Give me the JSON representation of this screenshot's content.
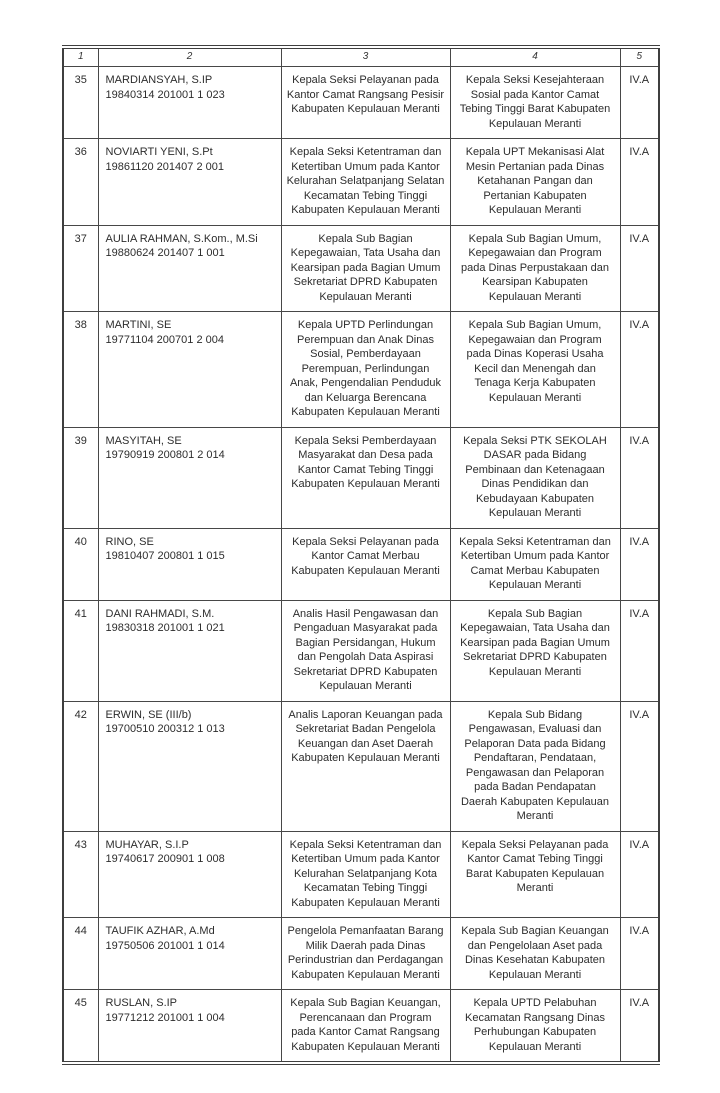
{
  "page": {
    "background": "#ffffff",
    "border_color": "#3f3f3f"
  },
  "table": {
    "headers": [
      "1",
      "2",
      "3",
      "4",
      "5"
    ],
    "rows": [
      {
        "no": "35",
        "name": "MARDIANSYAH, S.IP",
        "nip": "19840314 201001 1 023",
        "old_position": "Kepala Seksi Pelayanan pada Kantor Camat Rangsang Pesisir Kabupaten Kepulauan Meranti",
        "new_position": "Kepala Seksi Kesejahteraan Sosial pada Kantor Camat Tebing Tinggi Barat Kabupaten Kepulauan Meranti",
        "grade": "IV.A"
      },
      {
        "no": "36",
        "name": "NOVIARTI YENI, S.Pt",
        "nip": "19861120 201407 2 001",
        "old_position": "Kepala Seksi Ketentraman dan Ketertiban Umum pada Kantor Kelurahan Selatpanjang Selatan Kecamatan Tebing Tinggi Kabupaten Kepulauan Meranti",
        "new_position": "Kepala UPT Mekanisasi Alat Mesin Pertanian pada Dinas Ketahanan Pangan dan Pertanian Kabupaten Kepulauan Meranti",
        "grade": "IV.A"
      },
      {
        "no": "37",
        "name": "AULIA RAHMAN, S.Kom., M.Si",
        "nip": "19880624 201407 1 001",
        "old_position": "Kepala Sub Bagian Kepegawaian, Tata Usaha dan Kearsipan pada Bagian Umum Sekretariat DPRD Kabupaten Kepulauan Meranti",
        "new_position": "Kepala Sub Bagian Umum, Kepegawaian dan Program pada Dinas Perpustakaan dan Kearsipan Kabupaten Kepulauan Meranti",
        "grade": "IV.A"
      },
      {
        "no": "38",
        "name": "MARTINI, SE",
        "nip": "19771104 200701 2 004",
        "old_position": "Kepala UPTD Perlindungan Perempuan dan Anak Dinas Sosial, Pemberdayaan Perempuan, Perlindungan Anak, Pengendalian Penduduk dan Keluarga Berencana Kabupaten Kepulauan Meranti",
        "new_position": "Kepala Sub Bagian Umum, Kepegawaian dan Program pada Dinas Koperasi Usaha Kecil dan Menengah dan Tenaga Kerja Kabupaten Kepulauan Meranti",
        "grade": "IV.A"
      },
      {
        "no": "39",
        "name": "MASYITAH, SE",
        "nip": "19790919 200801 2 014",
        "old_position": "Kepala Seksi Pemberdayaan Masyarakat dan Desa pada Kantor Camat Tebing Tinggi Kabupaten Kepulauan Meranti",
        "new_position": "Kepala Seksi PTK SEKOLAH DASAR pada Bidang Pembinaan dan Ketenagaan Dinas Pendidikan dan Kebudayaan Kabupaten Kepulauan Meranti",
        "grade": "IV.A"
      },
      {
        "no": "40",
        "name": "RINO, SE",
        "nip": "19810407 200801 1 015",
        "old_position": "Kepala Seksi Pelayanan pada Kantor Camat Merbau Kabupaten Kepulauan Meranti",
        "new_position": "Kepala Seksi Ketentraman dan Ketertiban Umum pada Kantor Camat Merbau Kabupaten Kepulauan Meranti",
        "grade": "IV.A"
      },
      {
        "no": "41",
        "name": "DANI RAHMADI, S.M.",
        "nip": "19830318 201001 1 021",
        "old_position": "Analis Hasil Pengawasan dan Pengaduan Masyarakat pada Bagian Persidangan, Hukum dan Pengolah Data Aspirasi Sekretariat DPRD Kabupaten Kepulauan Meranti",
        "new_position": "Kepala Sub Bagian Kepegawaian, Tata Usaha dan Kearsipan pada Bagian Umum Sekretariat DPRD Kabupaten Kepulauan Meranti",
        "grade": "IV.A"
      },
      {
        "no": "42",
        "name": "ERWIN, SE (III/b)",
        "nip": "19700510 200312 1 013",
        "old_position": "Analis Laporan Keuangan pada Sekretariat Badan Pengelola Keuangan dan Aset Daerah Kabupaten Kepulauan Meranti",
        "new_position": "Kepala Sub Bidang Pengawasan, Evaluasi dan Pelaporan Data pada Bidang Pendaftaran, Pendataan, Pengawasan dan Pelaporan pada Badan Pendapatan Daerah Kabupaten Kepulauan Meranti",
        "grade": "IV.A"
      },
      {
        "no": "43",
        "name": "MUHAYAR, S.I.P",
        "nip": "19740617 200901 1 008",
        "old_position": "Kepala Seksi Ketentraman dan Ketertiban Umum pada Kantor Kelurahan Selatpanjang Kota Kecamatan Tebing Tinggi Kabupaten Kepulauan Meranti",
        "new_position": "Kepala Seksi Pelayanan pada Kantor Camat Tebing Tinggi Barat Kabupaten Kepulauan Meranti",
        "grade": "IV.A"
      },
      {
        "no": "44",
        "name": "TAUFIK AZHAR, A.Md",
        "nip": "19750506 201001 1 014",
        "old_position": "Pengelola Pemanfaatan Barang Milik Daerah pada Dinas Perindustrian dan Perdagangan Kabupaten Kepulauan Meranti",
        "new_position": "Kepala Sub Bagian Keuangan dan Pengelolaan Aset pada Dinas Kesehatan Kabupaten Kepulauan Meranti",
        "grade": "IV.A"
      },
      {
        "no": "45",
        "name": "RUSLAN, S.IP",
        "nip": "19771212 201001 1 004",
        "old_position": "Kepala Sub Bagian Keuangan, Perencanaan dan Program pada Kantor Camat Rangsang Kabupaten Kepulauan Meranti",
        "new_position": "Kepala UPTD Pelabuhan Kecamatan Rangsang Dinas Perhubungan Kabupaten Kepulauan Meranti",
        "grade": "IV.A"
      }
    ]
  }
}
